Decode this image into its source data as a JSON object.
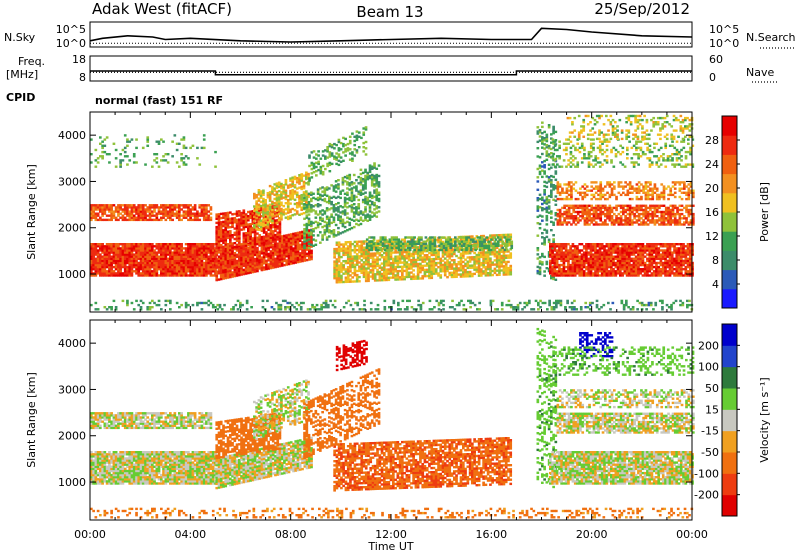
{
  "header": {
    "station": "Adak West (fitACF)",
    "beam": "Beam 13",
    "date": "25/Sep/2012"
  },
  "left_labels": {
    "nsky": "N.Sky",
    "freq": "Freq.",
    "mhz": "[MHz]",
    "cpid": "CPID",
    "nsky_ticks": [
      "10^5",
      "10^0"
    ],
    "freq_ticks": [
      "18",
      "8"
    ]
  },
  "right_labels": {
    "nsearch": "N.Search",
    "nave": "Nave",
    "nsearch_ticks": [
      "10^5",
      "10^0"
    ],
    "nave_ticks": [
      "60",
      "0"
    ]
  },
  "cpid_text": "normal (fast) 151 RF",
  "colors": {
    "power": [
      "#1a1aff",
      "#2b5ab8",
      "#3c8c6a",
      "#3aa052",
      "#8fc23a",
      "#f0c020",
      "#f39020",
      "#f06010",
      "#ee2a10",
      "#e60000"
    ],
    "velocity": [
      "#0000cc",
      "#2244cc",
      "#2e7a3c",
      "#66cc33",
      "#c8c8c0",
      "#f0a020",
      "#f07010",
      "#ee3c10",
      "#e00000"
    ]
  },
  "chart_data": [
    {
      "type": "line",
      "name": "N.Sky / N.Search",
      "x_unit": "hours UT",
      "y_ticks": [
        "10^5",
        "10^0"
      ],
      "series": [
        {
          "name": "N.Sky",
          "x": [
            0,
            0.5,
            1.5,
            2.5,
            3,
            4,
            6,
            8,
            10,
            12,
            14,
            16,
            17.6,
            18,
            19,
            20,
            22,
            24
          ],
          "y": [
            0.25,
            0.35,
            0.45,
            0.4,
            0.3,
            0.35,
            0.25,
            0.2,
            0.25,
            0.3,
            0.35,
            0.3,
            0.3,
            0.75,
            0.7,
            0.6,
            0.45,
            0.4
          ]
        },
        {
          "name": "N.Search",
          "x": [
            0,
            4,
            8,
            12,
            16,
            20,
            24
          ],
          "y": [
            0.15,
            0.15,
            0.15,
            0.15,
            0.15,
            0.15,
            0.15
          ]
        }
      ]
    },
    {
      "type": "line",
      "name": "Freq / Nave",
      "x_unit": "hours UT",
      "series": [
        {
          "name": "Freq.",
          "x": [
            0,
            5.0,
            5.0,
            17.0,
            17.0,
            24
          ],
          "y": [
            12,
            12,
            10.5,
            10.5,
            12,
            12
          ]
        },
        {
          "name": "Nave",
          "x": [
            0,
            24
          ],
          "y": [
            21,
            21
          ]
        }
      ]
    },
    {
      "type": "heatmap",
      "name": "Power",
      "xlabel": "",
      "ylabel": "Slant Range [km]",
      "xlim": [
        0,
        24
      ],
      "ylim": [
        180,
        4500
      ],
      "y_ticks": [
        1000,
        2000,
        3000,
        4000
      ],
      "colorbar": {
        "label": "Power [dB]",
        "ticks": [
          4,
          8,
          12,
          16,
          20,
          24,
          28
        ],
        "range": [
          0,
          32
        ]
      },
      "bands": [
        {
          "t": [
            0.0,
            5.0
          ],
          "r": [
            950,
            1650
          ],
          "v": 27,
          "d": 0.95,
          "s": 0
        },
        {
          "t": [
            0.0,
            4.8
          ],
          "r": [
            2150,
            2500
          ],
          "v": 25,
          "d": 0.8,
          "s": 0
        },
        {
          "t": [
            0.0,
            24.0
          ],
          "r": [
            220,
            420
          ],
          "v": 10,
          "d": 0.25,
          "s": 0
        },
        {
          "t": [
            5.0,
            8.8
          ],
          "r": [
            850,
            1500
          ],
          "v": 27,
          "d": 0.95,
          "s": 120
        },
        {
          "t": [
            5.0,
            7.6
          ],
          "r": [
            1500,
            2300
          ],
          "v": 27,
          "d": 0.8,
          "s": 80
        },
        {
          "t": [
            6.5,
            8.7
          ],
          "r": [
            1900,
            2800
          ],
          "v": 18,
          "d": 0.6,
          "s": 200
        },
        {
          "t": [
            8.5,
            11.5
          ],
          "r": [
            1500,
            2700
          ],
          "v": 12,
          "d": 0.5,
          "s": 250
        },
        {
          "t": [
            8.7,
            11.0
          ],
          "r": [
            3000,
            3600
          ],
          "v": 12,
          "d": 0.35,
          "s": 250
        },
        {
          "t": [
            9.7,
            16.8
          ],
          "r": [
            800,
            1700
          ],
          "v": 18,
          "d": 0.75,
          "s": 25
        },
        {
          "t": [
            11.0,
            16.8
          ],
          "r": [
            1500,
            1800
          ],
          "v": 12,
          "d": 0.6,
          "s": 0
        },
        {
          "t": [
            17.8,
            18.6
          ],
          "r": [
            1000,
            4300
          ],
          "v": 10,
          "d": 0.35,
          "s": -200
        },
        {
          "t": [
            18.3,
            24.0
          ],
          "r": [
            950,
            1650
          ],
          "v": 27,
          "d": 0.9,
          "s": 0
        },
        {
          "t": [
            18.6,
            24.0
          ],
          "r": [
            2050,
            2500
          ],
          "v": 25,
          "d": 0.75,
          "s": 0
        },
        {
          "t": [
            18.6,
            24.0
          ],
          "r": [
            2600,
            3000
          ],
          "v": 22,
          "d": 0.45,
          "s": 0
        },
        {
          "t": [
            18.4,
            24.0
          ],
          "r": [
            3300,
            3900
          ],
          "v": 14,
          "d": 0.3,
          "s": 0
        },
        {
          "t": [
            19.0,
            24.0
          ],
          "r": [
            3900,
            4400
          ],
          "v": 16,
          "d": 0.3,
          "s": 0
        },
        {
          "t": [
            0.0,
            5.0
          ],
          "r": [
            3300,
            4000
          ],
          "v": 12,
          "d": 0.12,
          "s": 0
        }
      ]
    },
    {
      "type": "heatmap",
      "name": "Velocity",
      "xlabel": "Time UT",
      "ylabel": "Slant Range [km]",
      "xlim": [
        0,
        24
      ],
      "ylim": [
        180,
        4500
      ],
      "y_ticks": [
        1000,
        2000,
        3000,
        4000
      ],
      "x_ticks": [
        "00:00",
        "04:00",
        "08:00",
        "12:00",
        "16:00",
        "20:00",
        "00:00"
      ],
      "colorbar": {
        "label": "Velocity [m s⁻¹]",
        "ticks": [
          200,
          100,
          50,
          15,
          -15,
          -50,
          -100,
          -200
        ]
      },
      "bands": [
        {
          "t": [
            0.0,
            5.0
          ],
          "r": [
            950,
            1650
          ],
          "v": 0,
          "d": 0.95,
          "s": 0
        },
        {
          "t": [
            0.0,
            4.8
          ],
          "r": [
            2150,
            2500
          ],
          "v": 0,
          "d": 0.8,
          "s": 0
        },
        {
          "t": [
            0.0,
            24.0
          ],
          "r": [
            220,
            420
          ],
          "v": -40,
          "d": 0.25,
          "s": 0
        },
        {
          "t": [
            5.0,
            8.8
          ],
          "r": [
            850,
            1500
          ],
          "v": 0,
          "d": 0.9,
          "s": 120
        },
        {
          "t": [
            5.0,
            7.6
          ],
          "r": [
            1500,
            2300
          ],
          "v": -60,
          "d": 0.7,
          "s": 80
        },
        {
          "t": [
            6.5,
            8.7
          ],
          "r": [
            1900,
            2800
          ],
          "v": 0,
          "d": 0.55,
          "s": 200
        },
        {
          "t": [
            8.5,
            11.5
          ],
          "r": [
            1500,
            2700
          ],
          "v": -60,
          "d": 0.5,
          "s": 250
        },
        {
          "t": [
            9.8,
            11.0
          ],
          "r": [
            3400,
            3900
          ],
          "v": -220,
          "d": 0.6,
          "s": 120
        },
        {
          "t": [
            9.7,
            16.8
          ],
          "r": [
            800,
            1800
          ],
          "v": -70,
          "d": 0.75,
          "s": 20
        },
        {
          "t": [
            17.8,
            18.6
          ],
          "r": [
            1000,
            4300
          ],
          "v": 20,
          "d": 0.35,
          "s": -200
        },
        {
          "t": [
            18.3,
            24.0
          ],
          "r": [
            950,
            1650
          ],
          "v": 0,
          "d": 0.9,
          "s": 0
        },
        {
          "t": [
            18.6,
            24.0
          ],
          "r": [
            2050,
            2500
          ],
          "v": 0,
          "d": 0.75,
          "s": 0
        },
        {
          "t": [
            18.6,
            24.0
          ],
          "r": [
            2600,
            3000
          ],
          "v": 0,
          "d": 0.45,
          "s": 0
        },
        {
          "t": [
            19.5,
            20.8
          ],
          "r": [
            3700,
            4200
          ],
          "v": 220,
          "d": 0.4,
          "s": 0
        },
        {
          "t": [
            18.5,
            24.0
          ],
          "r": [
            3300,
            3900
          ],
          "v": 20,
          "d": 0.3,
          "s": 0
        }
      ]
    }
  ]
}
